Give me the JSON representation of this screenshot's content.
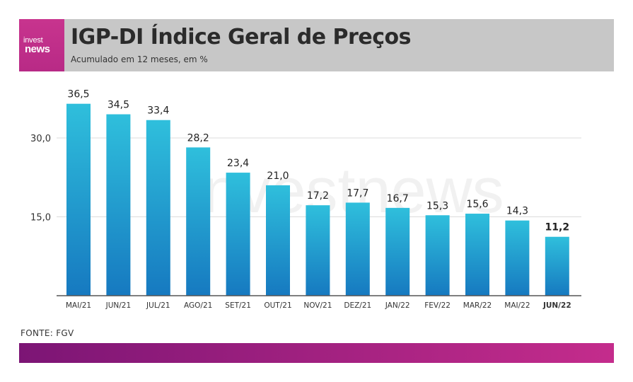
{
  "brand": {
    "logo_top": "invest",
    "logo_bottom": "news",
    "watermark": "investnews"
  },
  "header": {
    "title": "IGP-DI   Índice Geral de Preços",
    "subtitle": "Acumulado em 12 meses, em %"
  },
  "source": "FONTE: FGV",
  "colors": {
    "header_bg": "#c7c7c7",
    "bar_top": "#2fbfdc",
    "bar_bottom": "#1679c0",
    "footer_start": "#7c1575",
    "footer_end": "#c42c8c",
    "logo_bg": "#c8348e"
  },
  "chart_data": {
    "type": "bar",
    "title": "IGP-DI   Índice Geral de Preços",
    "subtitle": "Acumulado em 12 meses, em %",
    "categories": [
      "MAI/21",
      "JUN/21",
      "JUL/21",
      "AGO/21",
      "SET/21",
      "OUT/21",
      "NOV/21",
      "DEZ/21",
      "JAN/22",
      "FEV/22",
      "MAR/22",
      "MAI/22",
      "JUN/22"
    ],
    "values": [
      36.5,
      34.5,
      33.4,
      28.2,
      23.4,
      21.0,
      17.2,
      17.7,
      16.7,
      15.3,
      15.6,
      14.3,
      11.2
    ],
    "value_labels": [
      "36,5",
      "34,5",
      "33,4",
      "28,2",
      "23,4",
      "21,0",
      "17,2",
      "17,7",
      "16,7",
      "15,3",
      "15,6",
      "14,3",
      "11,2"
    ],
    "highlight_category": "JUN/22",
    "ylim": [
      0,
      40
    ],
    "yticks": [
      15,
      30
    ],
    "ytick_labels": [
      "15,0",
      "30,0"
    ],
    "grid": true
  }
}
